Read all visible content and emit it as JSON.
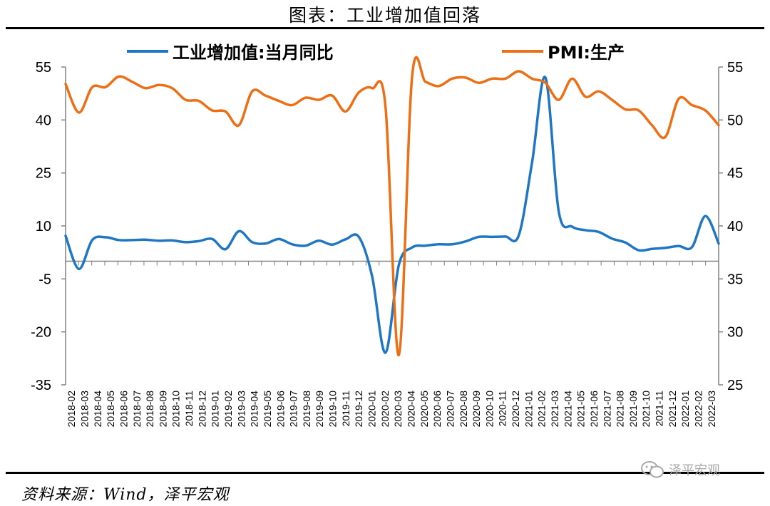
{
  "header": {
    "title": "图表：工业增加值回落"
  },
  "footer": {
    "source": "资料来源：Wind，泽平宏观",
    "watermark": "泽平宏观"
  },
  "colors": {
    "series1": "#1F77C4",
    "series2": "#ED6F15",
    "axis": "#808080"
  },
  "chart_data": {
    "type": "line",
    "x": [
      "2018-02",
      "2018-03",
      "2018-04",
      "2018-05",
      "2018-06",
      "2018-07",
      "2018-08",
      "2018-09",
      "2018-10",
      "2018-11",
      "2018-12",
      "2019-01",
      "2019-02",
      "2019-03",
      "2019-04",
      "2019-05",
      "2019-06",
      "2019-07",
      "2019-08",
      "2019-09",
      "2019-10",
      "2019-11",
      "2019-12",
      "2020-01",
      "2020-02",
      "2020-03",
      "2020-04",
      "2020-05",
      "2020-06",
      "2020-07",
      "2020-08",
      "2020-09",
      "2020-10",
      "2020-11",
      "2020-12",
      "2021-01",
      "2021-02",
      "2021-03",
      "2021-04",
      "2021-05",
      "2021-06",
      "2021-07",
      "2021-08",
      "2021-09",
      "2021-10",
      "2021-11",
      "2021-12",
      "2022-01",
      "2022-02",
      "2022-03"
    ],
    "y_left": {
      "ticks": [
        55,
        40,
        25,
        10,
        -5,
        -20,
        -35
      ],
      "tick_labels": [
        "55",
        "40",
        "25",
        "10",
        "-5",
        "-20",
        "-35"
      ],
      "range": [
        -35,
        55
      ]
    },
    "y_right": {
      "ticks": [
        55,
        50,
        45,
        40,
        35,
        30,
        25
      ],
      "tick_labels": [
        "55",
        "50",
        "45",
        "40",
        "35",
        "30",
        "25"
      ],
      "range": [
        25,
        55
      ]
    },
    "series": [
      {
        "name": "工业增加值:当月同比",
        "axis": "left",
        "values": [
          7.2,
          -2.2,
          6.0,
          6.8,
          6.0,
          6.0,
          6.1,
          5.8,
          5.9,
          5.4,
          5.7,
          6.3,
          3.4,
          8.5,
          5.4,
          5.0,
          6.3,
          4.8,
          4.4,
          5.8,
          4.7,
          6.2,
          6.9,
          -4.3,
          -25.9,
          -1.1,
          3.9,
          4.4,
          4.8,
          4.8,
          5.6,
          6.9,
          6.9,
          7.0,
          7.3,
          28.0,
          52.0,
          14.1,
          9.8,
          8.8,
          8.3,
          6.4,
          5.3,
          3.1,
          3.5,
          3.8,
          4.3,
          4.0,
          12.8,
          5.0
        ]
      },
      {
        "name": "PMI:生产",
        "axis": "right",
        "values": [
          53.4,
          50.7,
          53.1,
          53.1,
          54.1,
          53.6,
          53.0,
          53.3,
          53.0,
          51.9,
          51.8,
          50.9,
          50.8,
          49.5,
          52.7,
          52.3,
          51.8,
          51.4,
          52.1,
          51.9,
          52.3,
          50.8,
          52.6,
          53.0,
          51.3,
          27.8,
          54.1,
          53.6,
          53.2,
          53.9,
          54.0,
          53.5,
          53.9,
          53.9,
          54.6,
          53.9,
          53.5,
          51.9,
          53.9,
          52.2,
          52.7,
          51.9,
          51.0,
          50.9,
          49.5,
          48.4,
          52.0,
          51.4,
          50.9,
          49.5
        ]
      }
    ],
    "legend": {
      "position": "top",
      "entries": [
        "工业增加值:当月同比",
        "PMI:生产"
      ]
    },
    "grid": false,
    "baseline": 0
  }
}
